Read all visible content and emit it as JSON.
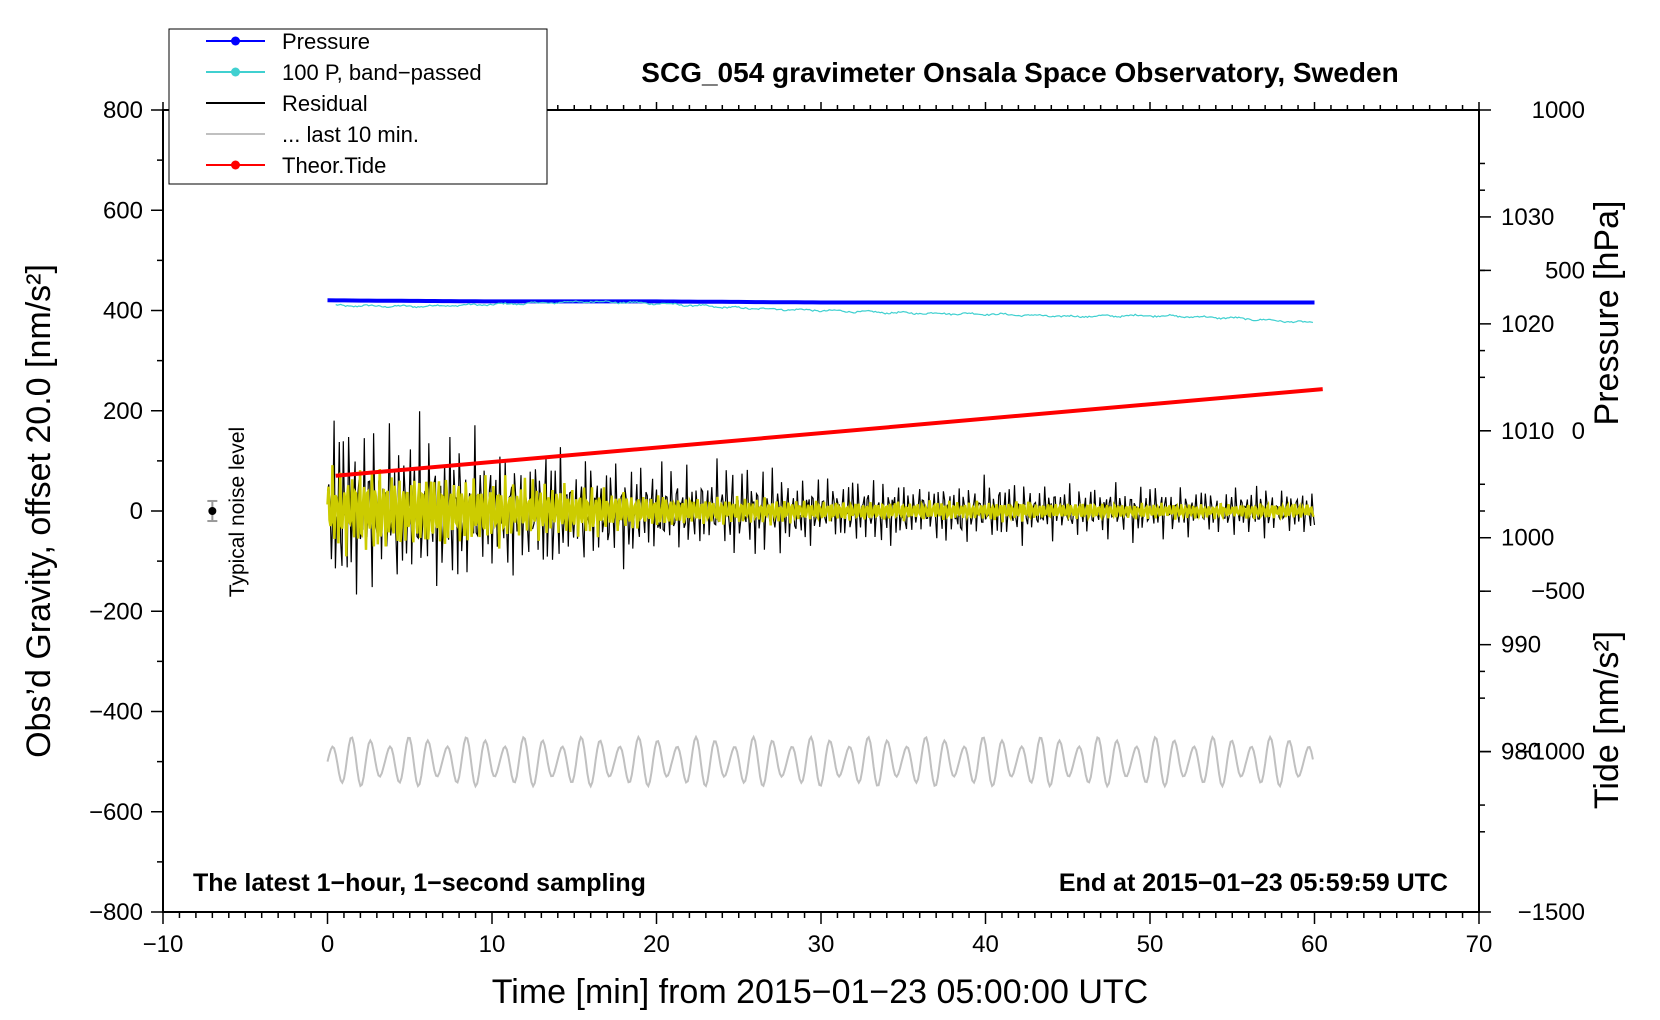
{
  "chart_data": {
    "type": "line",
    "title": "SCG_054 gravimeter Onsala Space Observatory, Sweden",
    "xlabel": "Time [min] from 2015−01−23 05:00:00 UTC",
    "ylabel_left": "Obs’d Gravity, offset 20.0 [nm/s²]",
    "ylabel_pressure": "Pressure [hPa]",
    "ylabel_tide": "Tide [nm/s²]",
    "xlim": [
      -10,
      70
    ],
    "ylim": [
      -800,
      800
    ],
    "pressure_lim": [
      1040,
      965
    ],
    "tide_lim": [
      -1500,
      1000
    ],
    "x_ticks": [
      "−10",
      "0",
      "10",
      "20",
      "30",
      "40",
      "50",
      "60",
      "70"
    ],
    "x_tick_values": [
      -10,
      0,
      10,
      20,
      30,
      40,
      50,
      60,
      70
    ],
    "y_ticks": [
      "800",
      "600",
      "400",
      "200",
      "0",
      "−200",
      "−400",
      "−600",
      "−800"
    ],
    "y_tick_values": [
      800,
      600,
      400,
      200,
      0,
      -200,
      -400,
      -600,
      -800
    ],
    "pressure_ticks": [
      "1030",
      "1020",
      "1010",
      "1000",
      "990",
      "980"
    ],
    "pressure_tick_values": [
      1030,
      1020,
      1010,
      1000,
      990,
      980
    ],
    "tide_ticks": [
      "1000",
      "500",
      "0",
      "−500",
      "−1000",
      "−1500"
    ],
    "tide_tick_values": [
      1000,
      500,
      0,
      -500,
      -1000,
      -1500
    ],
    "annotation_left": "The latest 1−hour, 1−second sampling",
    "annotation_right": "End at 2015−01−23 05:59:59 UTC",
    "noise_label": "Typical noise level",
    "noise_level": {
      "x": -7,
      "y": 0,
      "err": 20
    },
    "legend": [
      {
        "label": "Pressure",
        "color": "#0000ff",
        "marker": true
      },
      {
        "label": "100 P, band−passed",
        "color": "#40d0d0",
        "marker": true
      },
      {
        "label": "Residual",
        "color": "#000000",
        "marker": false
      },
      {
        "label": "... last 10 min.",
        "color": "#c0c0c0",
        "marker": false
      },
      {
        "label": "Theor.Tide",
        "color": "#ff0000",
        "marker": true
      }
    ],
    "series": [
      {
        "name": "Pressure",
        "color": "#0000ff",
        "axis": "pressure",
        "x": [
          0,
          10,
          20,
          30,
          40,
          50,
          60
        ],
        "values": [
          1022.2,
          1022.1,
          1022.1,
          1022.0,
          1022.0,
          1022.0,
          1022.0
        ]
      },
      {
        "name": "100 P, band-passed",
        "color": "#40d0d0",
        "axis": "left",
        "x": [
          0,
          5,
          10,
          16,
          20,
          25,
          30,
          35,
          40,
          45,
          50,
          55,
          60
        ],
        "values": [
          410,
          408,
          412,
          418,
          414,
          405,
          400,
          395,
          393,
          388,
          390,
          385,
          375
        ]
      },
      {
        "name": "Residual",
        "color": "#000000",
        "axis": "left",
        "x": [
          0,
          10,
          20,
          30,
          40,
          50,
          60
        ],
        "amplitude": [
          150,
          130,
          90,
          60,
          55,
          45,
          40
        ]
      },
      {
        "name": "... last 10 min.",
        "color": "#c0c0c0",
        "axis": "left",
        "x": [
          0,
          60
        ],
        "baseline": -500,
        "amplitude": 50
      },
      {
        "name": "Theor.Tide",
        "color": "#ff0000",
        "axis": "tide",
        "x": [
          0.5,
          60.5
        ],
        "values": [
          -140,
          130
        ]
      }
    ],
    "band_passed_residual": {
      "color": "#cccc00",
      "x": [
        0,
        10,
        20,
        30,
        40,
        50,
        60
      ],
      "amplitude": [
        90,
        70,
        35,
        20,
        20,
        15,
        15
      ]
    }
  }
}
